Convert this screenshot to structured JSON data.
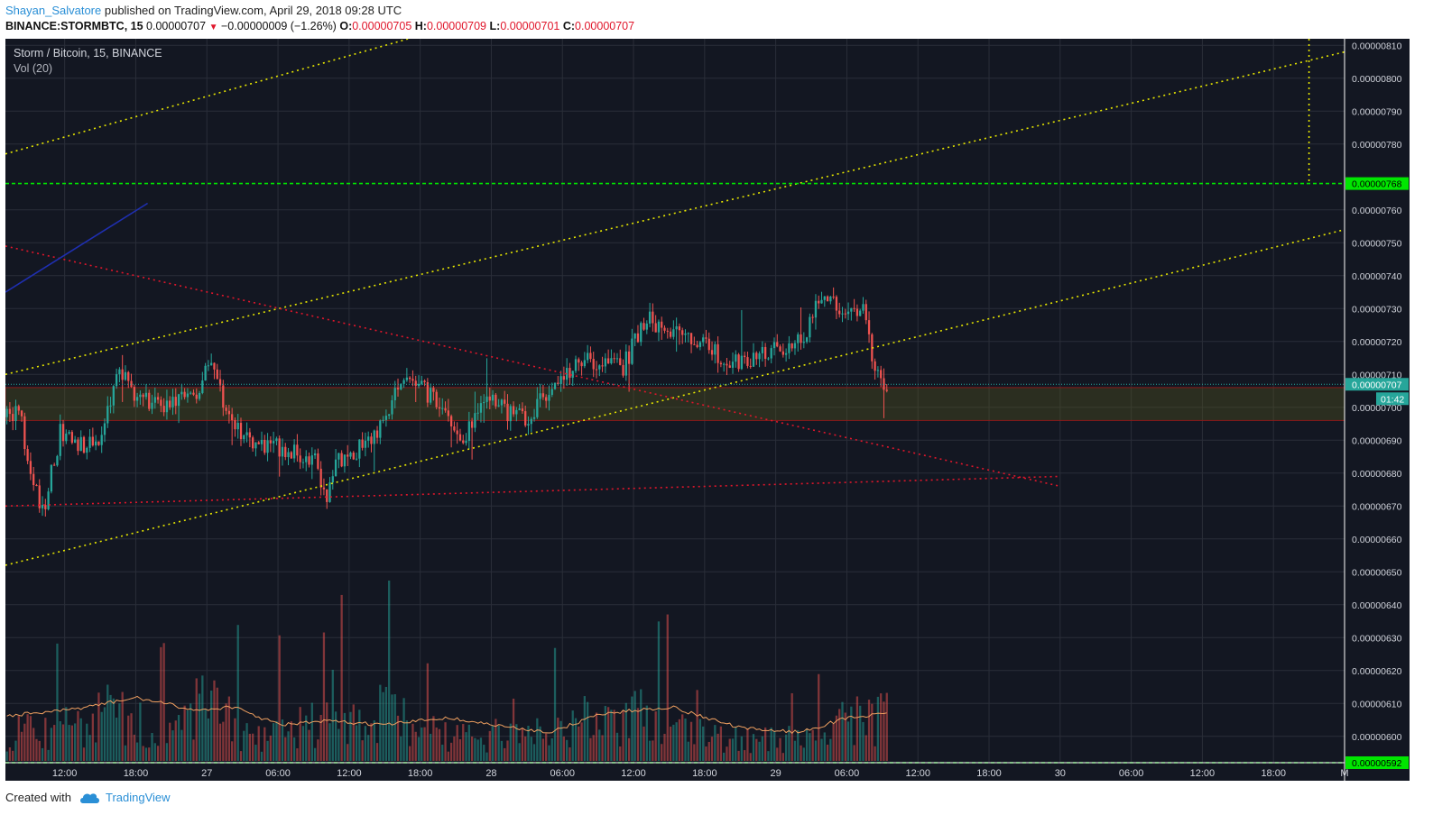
{
  "header": {
    "author": "Shayan_Salvatore",
    "published": " published on TradingView.com, April 29, 2018 09:28 UTC",
    "symbol": "BINANCE:STORMBTC, 15",
    "last": "0.00000707",
    "change": "−0.00000009 (−1.26%)",
    "o_label": "O:",
    "o_value": "0.00000705",
    "h_label": "H:",
    "h_value": "0.00000709",
    "l_label": "L:",
    "l_value": "0.00000701",
    "c_label": "C:",
    "c_value": "0.00000707"
  },
  "footer": {
    "created_with": "Created with",
    "brand": "TradingView"
  },
  "colors": {
    "background": "#131722",
    "up": "#26a69a",
    "down": "#ef5350",
    "support_line": "#00e600",
    "channel": "#e6e600",
    "trend_red": "#e0162b",
    "volume_ma": "#f0a060",
    "last_price": "#26a69a"
  },
  "chart_data": {
    "type": "candlestick",
    "title": "Storm / Bitcoin, 15, BINANCE",
    "indicator": "Vol (20)",
    "ylim": [
      5.92e-06,
      8.12e-06
    ],
    "y_ticks": [
      "0.00000810",
      "0.00000800",
      "0.00000790",
      "0.00000780",
      "0.00000760",
      "0.00000750",
      "0.00000740",
      "0.00000730",
      "0.00000720",
      "0.00000710",
      "0.00000700",
      "0.00000690",
      "0.00000680",
      "0.00000670",
      "0.00000660",
      "0.00000650",
      "0.00000640",
      "0.00000630",
      "0.00000620",
      "0.00000610",
      "0.00000600"
    ],
    "x_ticks": [
      "12:00",
      "18:00",
      "27",
      "06:00",
      "12:00",
      "18:00",
      "28",
      "06:00",
      "12:00",
      "18:00",
      "29",
      "06:00",
      "12:00",
      "18:00",
      "30",
      "06:00",
      "12:00",
      "18:00",
      "M"
    ],
    "x_start": "2018-04-26 07:00",
    "x_end": "2018-05-01 00:00",
    "price_labels": {
      "support_high": "0.00000768",
      "last": "0.00000707",
      "countdown": "01:42",
      "support_low": "0.00000592"
    },
    "horizontal_levels": [
      7.68e-06,
      5.92e-06
    ],
    "zone": [
      6.96e-06,
      7.06e-06
    ],
    "close_path": [
      [
        "2018-04-26 07:00",
        6.97e-06
      ],
      [
        "2018-04-26 08:00",
        7e-06
      ],
      [
        "2018-04-26 09:00",
        6.8e-06
      ],
      [
        "2018-04-26 10:00",
        6.68e-06
      ],
      [
        "2018-04-26 11:30",
        6.92e-06
      ],
      [
        "2018-04-26 13:00",
        6.88e-06
      ],
      [
        "2018-04-26 15:00",
        6.92e-06
      ],
      [
        "2018-04-26 16:30",
        7.11e-06
      ],
      [
        "2018-04-26 18:00",
        7.02e-06
      ],
      [
        "2018-04-26 21:00",
        7.01e-06
      ],
      [
        "2018-04-26 23:00",
        7.05e-06
      ],
      [
        "2018-04-27 00:15",
        7.13e-06
      ],
      [
        "2018-04-27 01:30",
        7e-06
      ],
      [
        "2018-04-27 03:00",
        6.9e-06
      ],
      [
        "2018-04-27 06:00",
        6.88e-06
      ],
      [
        "2018-04-27 09:00",
        6.84e-06
      ],
      [
        "2018-04-27 10:00",
        6.73e-06
      ],
      [
        "2018-04-27 11:00",
        6.84e-06
      ],
      [
        "2018-04-27 13:00",
        6.88e-06
      ],
      [
        "2018-04-27 15:00",
        6.95e-06
      ],
      [
        "2018-04-27 16:00",
        7.06e-06
      ],
      [
        "2018-04-27 18:00",
        7.07e-06
      ],
      [
        "2018-04-27 20:30",
        6.94e-06
      ],
      [
        "2018-04-27 21:30",
        6.88e-06
      ],
      [
        "2018-04-27 23:00",
        7.04e-06
      ],
      [
        "2018-04-28 01:00",
        6.99e-06
      ],
      [
        "2018-04-28 03:00",
        6.97e-06
      ],
      [
        "2018-04-28 05:00",
        7.07e-06
      ],
      [
        "2018-04-28 06:30",
        7.12e-06
      ],
      [
        "2018-04-28 08:00",
        7.14e-06
      ],
      [
        "2018-04-28 11:00",
        7.12e-06
      ],
      [
        "2018-04-28 13:00",
        7.28e-06
      ],
      [
        "2018-04-28 15:00",
        7.22e-06
      ],
      [
        "2018-04-28 17:00",
        7.21e-06
      ],
      [
        "2018-04-28 19:00",
        7.16e-06
      ],
      [
        "2018-04-28 21:00",
        7.13e-06
      ],
      [
        "2018-04-28 23:00",
        7.16e-06
      ],
      [
        "2018-04-29 02:00",
        7.2e-06
      ],
      [
        "2018-04-29 04:00",
        7.35e-06
      ],
      [
        "2018-04-29 06:00",
        7.27e-06
      ],
      [
        "2018-04-29 07:30",
        7.29e-06
      ],
      [
        "2018-04-29 08:15",
        7.1e-06
      ],
      [
        "2018-04-29 09:15",
        7.07e-06
      ]
    ],
    "volume_envelope": [
      [
        "2018-04-26 07:00",
        0.15
      ],
      [
        "2018-04-26 09:00",
        0.55
      ],
      [
        "2018-04-26 11:00",
        0.35
      ],
      [
        "2018-04-26 16:00",
        0.6
      ],
      [
        "2018-04-26 21:00",
        0.3
      ],
      [
        "2018-04-27 00:00",
        0.9
      ],
      [
        "2018-04-27 03:00",
        0.3
      ],
      [
        "2018-04-27 09:00",
        0.45
      ],
      [
        "2018-04-27 15:00",
        0.6
      ],
      [
        "2018-04-27 19:00",
        0.35
      ],
      [
        "2018-04-27 22:00",
        0.3
      ],
      [
        "2018-04-28 05:00",
        0.35
      ],
      [
        "2018-04-28 08:00",
        0.5
      ],
      [
        "2018-04-28 13:00",
        0.55
      ],
      [
        "2018-04-28 18:00",
        0.3
      ],
      [
        "2018-04-29 00:00",
        0.25
      ],
      [
        "2018-04-29 05:00",
        0.45
      ],
      [
        "2018-04-29 09:15",
        0.55
      ]
    ],
    "volume_ma": [
      [
        "2018-04-26 07:00",
        0.25
      ],
      [
        "2018-04-26 12:00",
        0.28
      ],
      [
        "2018-04-26 18:00",
        0.35
      ],
      [
        "2018-04-26 23:00",
        0.28
      ],
      [
        "2018-04-27 02:00",
        0.3
      ],
      [
        "2018-04-27 06:00",
        0.2
      ],
      [
        "2018-04-27 10:00",
        0.22
      ],
      [
        "2018-04-27 15:00",
        0.2
      ],
      [
        "2018-04-27 20:00",
        0.24
      ],
      [
        "2018-04-28 02:00",
        0.18
      ],
      [
        "2018-04-28 05:00",
        0.16
      ],
      [
        "2018-04-28 09:00",
        0.26
      ],
      [
        "2018-04-28 15:00",
        0.3
      ],
      [
        "2018-04-28 21:00",
        0.18
      ],
      [
        "2018-04-29 02:00",
        0.16
      ],
      [
        "2018-04-29 06:00",
        0.24
      ],
      [
        "2018-04-29 09:15",
        0.26
      ]
    ],
    "trendlines": [
      {
        "name": "channel-top",
        "from": [
          "2018-04-26 07:00",
          7.77e-06
        ],
        "to": [
          "2018-04-27 17:00",
          8.12e-06
        ]
      },
      {
        "name": "channel-middle",
        "from": [
          "2018-04-26 07:00",
          7.1e-06
        ],
        "to": [
          "2018-05-01 00:00",
          8.08e-06
        ]
      },
      {
        "name": "channel-bottom",
        "from": [
          "2018-04-26 07:00",
          6.52e-06
        ],
        "to": [
          "2018-05-01 00:00",
          7.54e-06
        ]
      },
      {
        "name": "descending-resistance",
        "from": [
          "2018-04-26 07:00",
          7.49e-06
        ],
        "to": [
          "2018-04-30 00:00",
          6.76e-06
        ]
      },
      {
        "name": "ascending-support",
        "from": [
          "2018-04-26 07:00",
          6.7e-06
        ],
        "to": [
          "2018-04-30 00:00",
          6.79e-06
        ]
      },
      {
        "name": "blue-line",
        "from": [
          "2018-04-26 07:00",
          7.35e-06
        ],
        "to": [
          "2018-04-26 19:00",
          7.62e-06
        ]
      }
    ],
    "vertical_marker": {
      "x": "2018-04-30 21:00",
      "from": 7.68e-06,
      "to": 8.12e-06
    }
  }
}
